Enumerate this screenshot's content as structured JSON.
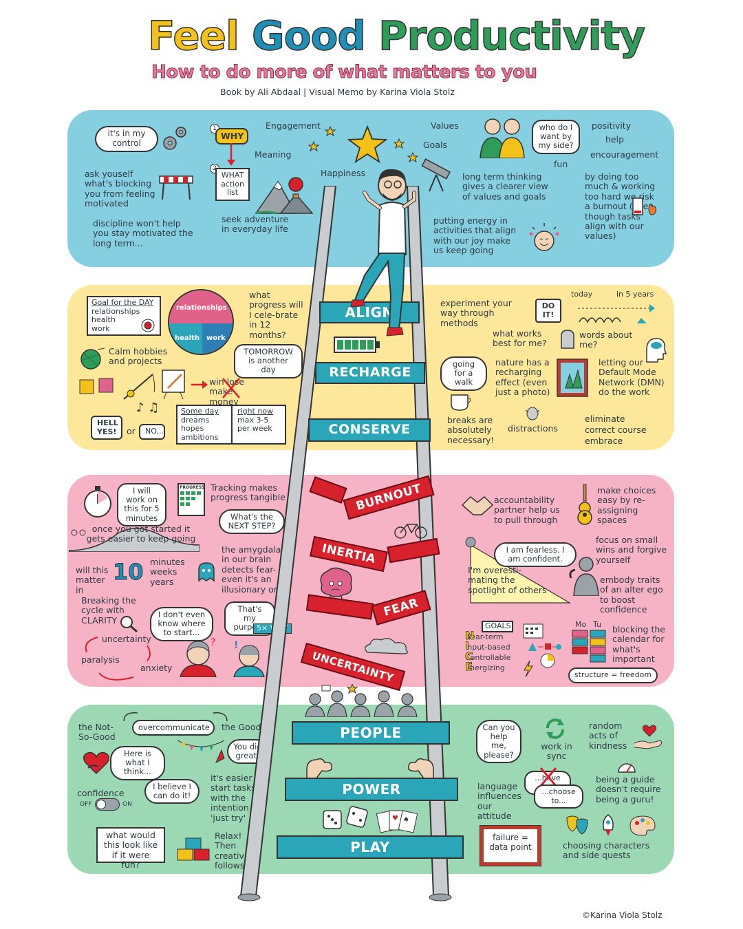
{
  "header": {
    "title_feel": "Feel",
    "title_good": "Good",
    "title_productivity": "Productivity",
    "subtitle": "How to do more of what matters to you",
    "credit": "Book by Ali Abdaal | Visual Memo by Karina Viola Stolz"
  },
  "colors": {
    "yellow": "#f3c21a",
    "blue": "#1f8fb7",
    "green": "#2f9c5a",
    "pink": "#e0628a",
    "band_blue": "#86cfe0",
    "band_yellow": "#fde79a",
    "band_pink": "#f6b3c6",
    "band_green": "#9dd8b5",
    "teal_rung": "#2aa6b8",
    "red_rung": "#d7222e"
  },
  "ladder": {
    "align": "ALIGN",
    "recharge": "RECHARGE",
    "conserve": "CONSERVE",
    "burnout": "BURNOUT",
    "inertia": "INERTIA",
    "fear": "FEAR",
    "uncertainty": "UNCERTAINTY",
    "people": "PEOPLE",
    "power": "POWER",
    "play": "PLAY"
  },
  "band1": {
    "in_control": "it's in my control",
    "why": "WHY",
    "what": "WHAT action list",
    "num1": "1",
    "num2": "2",
    "engagement": "Engagement",
    "values": "Values",
    "meaning": "Meaning",
    "goals": "Goals",
    "happiness": "Happiness",
    "blocking": "ask youself what's blocking you from feeling motivated",
    "discipline": "discipline won't help you stay motivated the long term...",
    "adventure": "seek adventure in everyday life",
    "long_term": "long term thinking gives a clearer view of values and goals",
    "who_side": "who do I want by my side?",
    "positivity": "positivity",
    "help": "help",
    "encouragement": "encouragement",
    "fun": "fun",
    "burnout_text": "by doing too much & working too hard we risk a burnout (even though tasks align with our values)",
    "joy": "putting energy in activities that align with our joy make us keep going"
  },
  "band2": {
    "goal_title": "Goal for the DAY",
    "goal_items": [
      "relationships",
      "health",
      "work"
    ],
    "wheel_relationships": "relationships",
    "wheel_health": "health",
    "wheel_work": "work",
    "progress": "what progress will I cele-brate in 12 months?",
    "tomorrow": "TOMORROW is another day",
    "hobbies": "Calm hobbies and projects",
    "win_lose": "win lose",
    "make_money": "make money",
    "hell_yes": "HELL YES!",
    "or": "or",
    "no": "NO...",
    "someday_title": "Some day",
    "someday_items": [
      "dreams",
      "hopes",
      "ambitions"
    ],
    "rightnow_title": "right now",
    "rightnow_items": [
      "max 3-5 per week"
    ],
    "experiment": "experiment your way through methods",
    "do_it": "DO IT!",
    "what_works": "what works best for me?",
    "today": "today",
    "in5": "in 5 years",
    "words": "words about me?",
    "walk": "going for a walk",
    "nature": "nature has a recharging effect (even just a photo)",
    "dmn": "letting our Default Mode Network (DMN) do the work",
    "breaks": "breaks are absolutely necessary!",
    "distractions": "distractions",
    "eliminate": "eliminate",
    "correct": "correct course",
    "embrace": "embrace"
  },
  "band3": {
    "five_min": "I will work on this for 5 minutes",
    "progress_label": "PROGRESS",
    "tracking": "Tracking makes progress tangible",
    "next_step": "What's the NEXT STEP?",
    "once": "once you got started it gets easier to keep going",
    "will_this": "will this matter in",
    "ten": "10",
    "minutes": "minutes",
    "weeks": "weeks",
    "years": "years",
    "amygdala": "the amygdala in our brain detects fear-even it's an illusionary one",
    "breaking": "Breaking the cycle with CLARITY",
    "dont_know": "I don't even know where to start...",
    "purpose": "That's my purpose",
    "five_why": "5× WHY",
    "uncertainty": "uncertainty",
    "paralysis": "paralysis",
    "anxiety": "anxiety",
    "accountability": "accountability partner help us to pull through",
    "choices": "make choices easy by re-assigning spaces",
    "fearless": "I am fearless. I am confident.",
    "small_wins": "focus on small wins and forgive yourself",
    "spotlight": "I'm overesti-mating the spotlight of others",
    "embody": "embody traits of an alter ego to boost confidence",
    "goals_label": "GOALS",
    "nice": "Near-term Input-based Controllable Energizing",
    "mo": "Mo",
    "tu": "Tu",
    "blocking_cal": "blocking the calendar for what's important",
    "structure": "structure = freedom"
  },
  "band4": {
    "overcommunicate": "overcommunicate",
    "not_so_good": "the Not-So-Good",
    "the_good": "the Good",
    "here_is": "Here is what I think...",
    "you_did": "You did great!",
    "believe": "I believe I can do it!",
    "confidence": "confidence",
    "off": "OFF",
    "on": "ON",
    "easier": "it's easier to start tasks with the intention to 'just try'",
    "fun": "what would this look like if it were fun?",
    "relax": "Relax! Then creativity follows",
    "can_you": "Can you help me, please?",
    "sync": "work in sync",
    "kindness": "random acts of kindness",
    "have_to": "...have to...",
    "choose_to": "...choose to...",
    "language": "language influences our attitude",
    "guide": "being a guide doesn't require being a guru!",
    "failure": "failure = data point",
    "characters": "choosing characters and side quests"
  },
  "footer": {
    "copyright": "©Karina Viola Stolz"
  }
}
